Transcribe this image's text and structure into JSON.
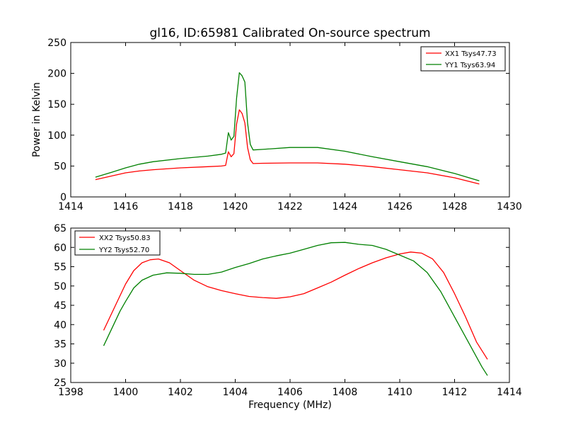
{
  "chart_data": [
    {
      "type": "line",
      "title": "gl16, ID:65981 Calibrated On-source spectrum",
      "xlabel": "",
      "ylabel": "Power in Kelvin",
      "xlim": [
        1414,
        1430
      ],
      "ylim": [
        0,
        250
      ],
      "xticks": [
        "1414",
        "1416",
        "1418",
        "1420",
        "1422",
        "1424",
        "1426",
        "1428",
        "1430"
      ],
      "yticks": [
        "0",
        "50",
        "100",
        "150",
        "200",
        "250"
      ],
      "legend_position": "top-right",
      "series": [
        {
          "name": "XX1 Tsys47.73",
          "color": "#ff0000",
          "x": [
            1414.9,
            1415.5,
            1416.0,
            1416.5,
            1417.0,
            1418.0,
            1419.0,
            1419.5,
            1419.65,
            1419.75,
            1419.85,
            1419.95,
            1420.05,
            1420.15,
            1420.25,
            1420.35,
            1420.45,
            1420.55,
            1420.65,
            1421.0,
            1422.0,
            1423.0,
            1424.0,
            1425.0,
            1426.0,
            1427.0,
            1428.0,
            1428.9
          ],
          "y": [
            28,
            34,
            39,
            42,
            44,
            47,
            49,
            50,
            51,
            73,
            65,
            70,
            118,
            141,
            135,
            120,
            80,
            60,
            54,
            54.5,
            55,
            55,
            53,
            49,
            44,
            39,
            31,
            21
          ]
        },
        {
          "name": "YY1 Tsys63.94",
          "color": "#008000",
          "x": [
            1414.9,
            1415.5,
            1416.0,
            1416.5,
            1417.0,
            1418.0,
            1419.0,
            1419.5,
            1419.65,
            1419.75,
            1419.85,
            1419.95,
            1420.05,
            1420.15,
            1420.25,
            1420.35,
            1420.45,
            1420.55,
            1420.65,
            1421.0,
            1422.0,
            1423.0,
            1424.0,
            1425.0,
            1426.0,
            1427.0,
            1428.0,
            1428.9
          ],
          "y": [
            32,
            40,
            47,
            53,
            57,
            62,
            66,
            69,
            71,
            104,
            92,
            98,
            160,
            201,
            196,
            186,
            120,
            85,
            76,
            77,
            80,
            80,
            74,
            65,
            57,
            49,
            38,
            26
          ]
        }
      ]
    },
    {
      "type": "line",
      "title": "",
      "xlabel": "Frequency (MHz)",
      "ylabel": "",
      "xlim": [
        1398,
        1414
      ],
      "ylim": [
        25,
        65
      ],
      "xticks": [
        "1398",
        "1400",
        "1402",
        "1404",
        "1406",
        "1408",
        "1410",
        "1412",
        "1414"
      ],
      "yticks": [
        "25",
        "30",
        "35",
        "40",
        "45",
        "50",
        "55",
        "60",
        "65"
      ],
      "legend_position": "top-left",
      "series": [
        {
          "name": "XX2 Tsys50.83",
          "color": "#ff0000",
          "x": [
            1399.2,
            1399.5,
            1399.8,
            1400.0,
            1400.3,
            1400.6,
            1400.9,
            1401.2,
            1401.6,
            1402.0,
            1402.5,
            1403.0,
            1403.5,
            1404.0,
            1404.5,
            1405.0,
            1405.5,
            1406.0,
            1406.5,
            1407.0,
            1407.5,
            1408.0,
            1408.5,
            1409.0,
            1409.5,
            1410.0,
            1410.4,
            1410.8,
            1411.2,
            1411.6,
            1412.0,
            1412.4,
            1412.8,
            1413.2
          ],
          "y": [
            38.5,
            43,
            47.5,
            50.5,
            54,
            56,
            56.8,
            57,
            56,
            54,
            51.5,
            49.8,
            48.8,
            48,
            47.3,
            47,
            46.8,
            47.2,
            48,
            49.5,
            51,
            52.8,
            54.5,
            56,
            57.3,
            58.3,
            58.8,
            58.5,
            57,
            53.5,
            48,
            42,
            35.5,
            31
          ]
        },
        {
          "name": "YY2 Tsys52.70",
          "color": "#008000",
          "x": [
            1399.2,
            1399.5,
            1399.8,
            1400.0,
            1400.3,
            1400.6,
            1401.0,
            1401.5,
            1402.0,
            1402.5,
            1403.0,
            1403.5,
            1404.0,
            1404.5,
            1405.0,
            1405.5,
            1406.0,
            1406.5,
            1407.0,
            1407.5,
            1408.0,
            1408.5,
            1409.0,
            1409.5,
            1410.0,
            1410.5,
            1411.0,
            1411.5,
            1412.0,
            1412.5,
            1413.0,
            1413.2
          ],
          "y": [
            34.5,
            39,
            43.5,
            46,
            49.5,
            51.5,
            52.8,
            53.4,
            53.3,
            53,
            53,
            53.6,
            54.8,
            55.8,
            57,
            57.8,
            58.5,
            59.5,
            60.5,
            61.2,
            61.3,
            60.8,
            60.5,
            59.5,
            58,
            56.5,
            53.5,
            48.5,
            42,
            35.5,
            29,
            26.8
          ]
        }
      ]
    }
  ]
}
